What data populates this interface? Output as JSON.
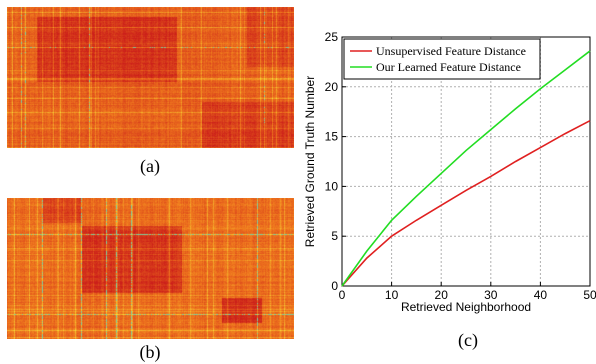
{
  "panels": {
    "a_label": "(a)",
    "b_label": "(b)",
    "c_label": "(c)"
  },
  "heatmap_colors": {
    "low": "#cc1f1a",
    "mid": "#f07a1e",
    "high": "#f6e23a",
    "outlier": "#7fd0a0"
  },
  "chart_data": {
    "type": "line",
    "title": "",
    "xlabel": "Retrieved Neighborhood",
    "ylabel": "Retrieved Ground Truth Number",
    "xlim": [
      0,
      50
    ],
    "ylim": [
      0,
      25
    ],
    "xticks": [
      0,
      10,
      20,
      30,
      40,
      50
    ],
    "yticks": [
      0,
      5,
      10,
      15,
      20,
      25
    ],
    "grid": true,
    "legend_position": "top-left",
    "x": [
      0,
      5,
      10,
      15,
      20,
      25,
      30,
      35,
      40,
      45,
      50
    ],
    "series": [
      {
        "name": "Unsupervised Feature Distance",
        "color": "#e02020",
        "values": [
          0,
          2.8,
          5.0,
          6.6,
          8.1,
          9.6,
          11.0,
          12.5,
          13.9,
          15.3,
          16.6
        ]
      },
      {
        "name": "Our Learned Feature Distance",
        "color": "#22dd22",
        "values": [
          0,
          3.5,
          6.6,
          9.0,
          11.3,
          13.6,
          15.7,
          17.8,
          19.8,
          21.7,
          23.6
        ]
      }
    ]
  }
}
